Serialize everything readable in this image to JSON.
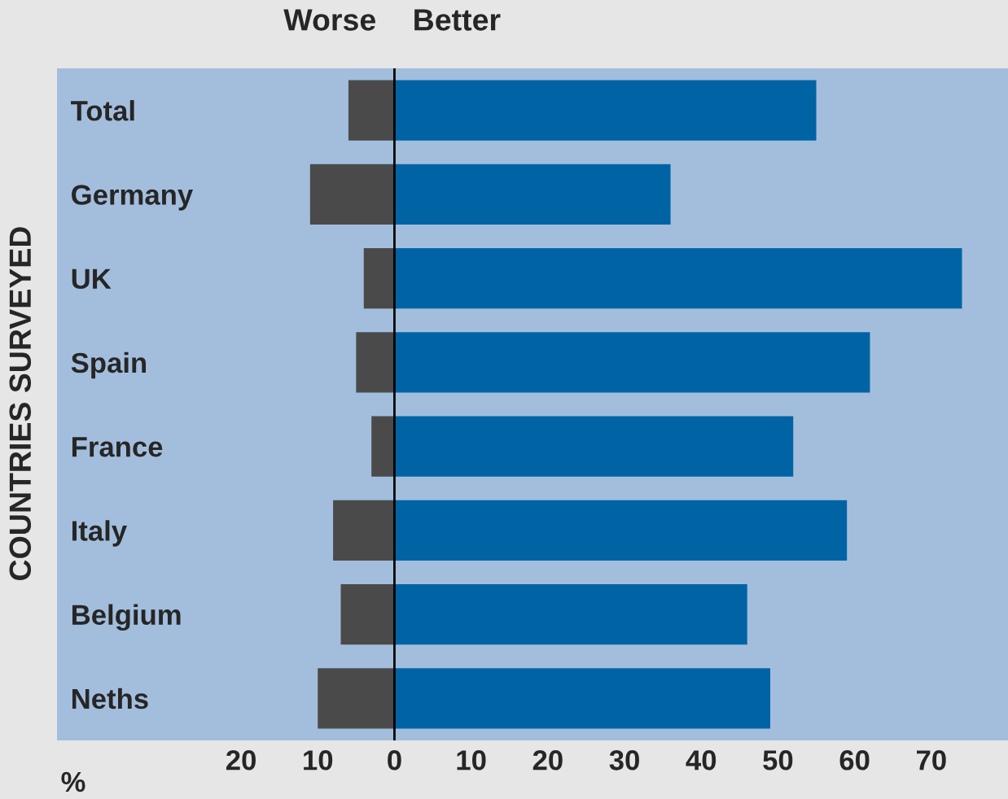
{
  "chart_data": {
    "type": "bar",
    "orientation": "horizontal",
    "xlabel": "%",
    "ylabel": "COUNTRIES SURVEYED",
    "stacked": true,
    "categories": [
      "Total",
      "Germany",
      "UK",
      "Spain",
      "France",
      "Italy",
      "Belgium",
      "Neths"
    ],
    "series": [
      {
        "name": "Worse",
        "color": "#4a4a4a",
        "values": [
          -6,
          -11,
          -4,
          -5,
          -3,
          -8,
          -7,
          -10
        ]
      },
      {
        "name": "Better",
        "color": "#0064a4",
        "values": [
          55,
          36,
          74,
          62,
          52,
          59,
          46,
          49
        ]
      }
    ],
    "xlim": [
      -44,
      80
    ],
    "xticks": [
      {
        "value": -20,
        "label": "20"
      },
      {
        "value": -10,
        "label": "10"
      },
      0,
      10,
      20,
      30,
      40,
      50,
      60,
      70
    ],
    "ref_lines": [
      {
        "axis": "x",
        "value": 0,
        "color": "#000000"
      }
    ],
    "grid": false,
    "legend": "top"
  }
}
